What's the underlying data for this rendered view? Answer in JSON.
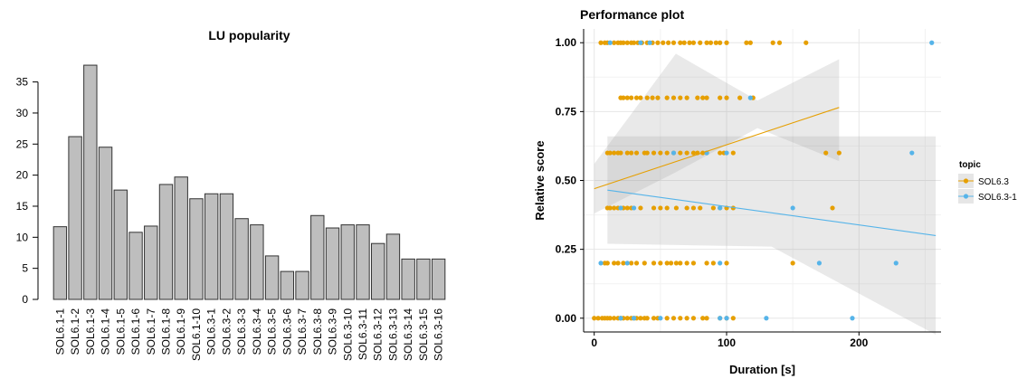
{
  "chart_data": [
    {
      "type": "bar",
      "title": "LU popularity",
      "categories": [
        "SOL6.1-1",
        "SOL6.1-2",
        "SOL6.1-3",
        "SOL6.1-4",
        "SOL6.1-5",
        "SOL6.1-6",
        "SOL6.1-7",
        "SOL6.1-8",
        "SOL6.1-9",
        "SOL6.1-10",
        "SOL6.3-1",
        "SOL6.3-2",
        "SOL6.3-3",
        "SOL6.3-4",
        "SOL6.3-5",
        "SOL6.3-6",
        "SOL6.3-7",
        "SOL6.3-8",
        "SOL6.3-9",
        "SOL6.3-10",
        "SOL6.3-11",
        "SOL6.3-12",
        "SOL6.3-13",
        "SOL6.3-14",
        "SOL6.3-15",
        "SOL6.3-16"
      ],
      "values": [
        11.7,
        26.2,
        37.7,
        24.5,
        17.6,
        10.8,
        11.8,
        18.5,
        19.7,
        16.2,
        17,
        17,
        13,
        12,
        7,
        4.5,
        4.5,
        13.5,
        11.5,
        12,
        12,
        9,
        10.5,
        6.5,
        6.5,
        6.5
      ],
      "ylim": [
        0,
        38
      ],
      "yticks": [
        0,
        5,
        10,
        15,
        20,
        25,
        30,
        35
      ],
      "colors": {
        "bar": "#bebebe",
        "stroke": "#333333"
      }
    },
    {
      "type": "scatter",
      "title": "Performance plot",
      "xlabel": "Duration [s]",
      "ylabel": "Relative score",
      "xlim": [
        -8,
        262
      ],
      "ylim": [
        -0.05,
        1.05
      ],
      "xticks": [
        0,
        100,
        200
      ],
      "xtick_labels": [
        "0",
        "100",
        "200"
      ],
      "yticks": [
        0,
        0.25,
        0.5,
        0.75,
        1
      ],
      "ytick_labels": [
        "0.00",
        "0.25",
        "0.50",
        "0.75",
        "1.00"
      ],
      "grid": true,
      "legend": {
        "title": "topic",
        "position": "right"
      },
      "series": [
        {
          "name": "SOL6.3",
          "color": "#e69f00",
          "points": [
            [
              5,
              1
            ],
            [
              8,
              1
            ],
            [
              10,
              1
            ],
            [
              15,
              1
            ],
            [
              18,
              1
            ],
            [
              20,
              1
            ],
            [
              22,
              1
            ],
            [
              25,
              1
            ],
            [
              28,
              1
            ],
            [
              30,
              1
            ],
            [
              33,
              1
            ],
            [
              36,
              1
            ],
            [
              40,
              1
            ],
            [
              44,
              1
            ],
            [
              48,
              1
            ],
            [
              52,
              1
            ],
            [
              56,
              1
            ],
            [
              60,
              1
            ],
            [
              65,
              1
            ],
            [
              68,
              1
            ],
            [
              72,
              1
            ],
            [
              75,
              1
            ],
            [
              80,
              1
            ],
            [
              85,
              1
            ],
            [
              88,
              1
            ],
            [
              92,
              1
            ],
            [
              95,
              1
            ],
            [
              100,
              1
            ],
            [
              115,
              1
            ],
            [
              118,
              1
            ],
            [
              135,
              1
            ],
            [
              140,
              1
            ],
            [
              160,
              1
            ],
            [
              20,
              0.8
            ],
            [
              22,
              0.8
            ],
            [
              25,
              0.8
            ],
            [
              28,
              0.8
            ],
            [
              32,
              0.8
            ],
            [
              35,
              0.8
            ],
            [
              40,
              0.8
            ],
            [
              44,
              0.8
            ],
            [
              48,
              0.8
            ],
            [
              55,
              0.8
            ],
            [
              60,
              0.8
            ],
            [
              65,
              0.8
            ],
            [
              70,
              0.8
            ],
            [
              78,
              0.8
            ],
            [
              82,
              0.8
            ],
            [
              85,
              0.8
            ],
            [
              95,
              0.8
            ],
            [
              100,
              0.8
            ],
            [
              110,
              0.8
            ],
            [
              120,
              0.8
            ],
            [
              10,
              0.6
            ],
            [
              12,
              0.6
            ],
            [
              15,
              0.6
            ],
            [
              18,
              0.6
            ],
            [
              20,
              0.6
            ],
            [
              25,
              0.6
            ],
            [
              28,
              0.6
            ],
            [
              32,
              0.6
            ],
            [
              38,
              0.6
            ],
            [
              40,
              0.6
            ],
            [
              45,
              0.6
            ],
            [
              50,
              0.6
            ],
            [
              55,
              0.6
            ],
            [
              60,
              0.6
            ],
            [
              65,
              0.6
            ],
            [
              70,
              0.6
            ],
            [
              75,
              0.6
            ],
            [
              78,
              0.6
            ],
            [
              82,
              0.6
            ],
            [
              85,
              0.6
            ],
            [
              95,
              0.6
            ],
            [
              98,
              0.6
            ],
            [
              105,
              0.6
            ],
            [
              175,
              0.6
            ],
            [
              185,
              0.6
            ],
            [
              10,
              0.4
            ],
            [
              12,
              0.4
            ],
            [
              15,
              0.4
            ],
            [
              18,
              0.4
            ],
            [
              22,
              0.4
            ],
            [
              25,
              0.4
            ],
            [
              28,
              0.4
            ],
            [
              35,
              0.4
            ],
            [
              45,
              0.4
            ],
            [
              50,
              0.4
            ],
            [
              55,
              0.4
            ],
            [
              62,
              0.4
            ],
            [
              70,
              0.4
            ],
            [
              75,
              0.4
            ],
            [
              80,
              0.4
            ],
            [
              90,
              0.4
            ],
            [
              95,
              0.4
            ],
            [
              100,
              0.4
            ],
            [
              105,
              0.4
            ],
            [
              180,
              0.4
            ],
            [
              8,
              0.2
            ],
            [
              10,
              0.2
            ],
            [
              15,
              0.2
            ],
            [
              18,
              0.2
            ],
            [
              22,
              0.2
            ],
            [
              28,
              0.2
            ],
            [
              32,
              0.2
            ],
            [
              38,
              0.2
            ],
            [
              45,
              0.2
            ],
            [
              50,
              0.2
            ],
            [
              55,
              0.2
            ],
            [
              58,
              0.2
            ],
            [
              62,
              0.2
            ],
            [
              65,
              0.2
            ],
            [
              70,
              0.2
            ],
            [
              75,
              0.2
            ],
            [
              85,
              0.2
            ],
            [
              90,
              0.2
            ],
            [
              100,
              0.2
            ],
            [
              150,
              0.2
            ],
            [
              0,
              0
            ],
            [
              3,
              0
            ],
            [
              6,
              0
            ],
            [
              8,
              0
            ],
            [
              10,
              0
            ],
            [
              12,
              0
            ],
            [
              15,
              0
            ],
            [
              18,
              0
            ],
            [
              20,
              0
            ],
            [
              22,
              0
            ],
            [
              25,
              0
            ],
            [
              28,
              0
            ],
            [
              30,
              0
            ],
            [
              32,
              0
            ],
            [
              35,
              0
            ],
            [
              38,
              0
            ],
            [
              40,
              0
            ],
            [
              45,
              0
            ],
            [
              48,
              0
            ],
            [
              55,
              0
            ],
            [
              60,
              0
            ],
            [
              65,
              0
            ],
            [
              70,
              0
            ],
            [
              75,
              0
            ],
            [
              82,
              0
            ],
            [
              85,
              0
            ],
            [
              95,
              0
            ],
            [
              100,
              0
            ],
            [
              105,
              0
            ]
          ],
          "trend": {
            "x": [
              0,
              185
            ],
            "y": [
              0.47,
              0.765
            ],
            "ci": [
              [
                0.38,
                0.56
              ],
              [
                0.53,
                0.96
              ],
              [
                0.69,
                0.79
              ],
              [
                0.57,
                0.94
              ]
            ]
          }
        },
        {
          "name": "SOL6.3-1",
          "color": "#56b4e9",
          "points": [
            [
              12,
              1
            ],
            [
              35,
              1
            ],
            [
              42,
              1
            ],
            [
              255,
              1
            ],
            [
              118,
              0.8
            ],
            [
              60,
              0.6
            ],
            [
              85,
              0.6
            ],
            [
              100,
              0.6
            ],
            [
              240,
              0.6
            ],
            [
              20,
              0.4
            ],
            [
              30,
              0.4
            ],
            [
              95,
              0.4
            ],
            [
              150,
              0.4
            ],
            [
              5,
              0.2
            ],
            [
              25,
              0.2
            ],
            [
              95,
              0.2
            ],
            [
              170,
              0.2
            ],
            [
              228,
              0.2
            ],
            [
              20,
              0
            ],
            [
              30,
              0
            ],
            [
              50,
              0
            ],
            [
              95,
              0
            ],
            [
              100,
              0
            ],
            [
              130,
              0
            ],
            [
              195,
              0
            ]
          ],
          "trend": {
            "x": [
              10,
              258
            ],
            "y": [
              0.465,
              0.3
            ],
            "ci": [
              [
                0.27,
                0.66
              ],
              [
                0.26,
                0.66
              ],
              [
                -0.06,
                0.66
              ]
            ]
          }
        }
      ]
    }
  ]
}
